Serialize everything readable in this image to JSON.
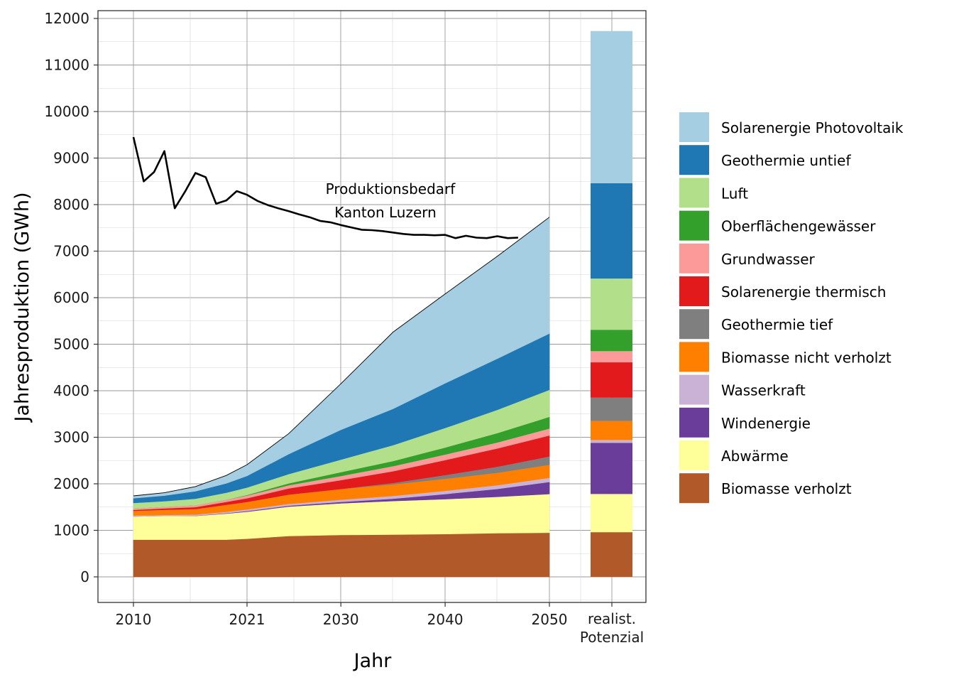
{
  "chart_data": {
    "type": "area",
    "xlabel": "Jahr",
    "ylabel": "Jahresproduktion (GWh)",
    "ylim": [
      -550,
      12200
    ],
    "yticks": [
      0,
      1000,
      2000,
      3000,
      4000,
      5000,
      6000,
      7000,
      8000,
      9000,
      10000,
      11000,
      12000
    ],
    "ytick_labels": [
      "0",
      "1000",
      "2000",
      "3000",
      "4000",
      "5000",
      "6000",
      "7000",
      "8000",
      "9000",
      "10000",
      "11000",
      "12000"
    ],
    "xticks": [
      2010,
      2021,
      2030,
      2040,
      2050
    ],
    "xtick_labels": [
      "2010",
      "2021",
      "2030",
      "2040",
      "2050"
    ],
    "potential_label_line1": "realist.",
    "potential_label_line2": "Potenzial",
    "annotation_line1": "Produktionsbedarf",
    "annotation_line2": "Kanton Luzern",
    "legend_position": "right",
    "grid": true,
    "x": [
      2010,
      2013,
      2016,
      2019,
      2021,
      2025,
      2030,
      2035,
      2040,
      2045,
      2050
    ],
    "series": [
      {
        "name": "Biomasse verholzt",
        "color": "#b15928",
        "values": [
          800,
          800,
          800,
          800,
          820,
          880,
          900,
          910,
          920,
          940,
          950
        ]
      },
      {
        "name": "Abwärme",
        "color": "#ffff99",
        "values": [
          500,
          510,
          510,
          560,
          580,
          630,
          680,
          720,
          750,
          780,
          830
        ]
      },
      {
        "name": "Windenergie",
        "color": "#6a3d9a",
        "values": [
          0,
          0,
          5,
          10,
          15,
          20,
          30,
          50,
          110,
          170,
          260
        ]
      },
      {
        "name": "Wasserkraft",
        "color": "#cab2d6",
        "values": [
          20,
          22,
          25,
          30,
          35,
          40,
          50,
          60,
          70,
          80,
          90
        ]
      },
      {
        "name": "Biomasse nicht verholzt",
        "color": "#ff7f00",
        "values": [
          100,
          110,
          120,
          150,
          160,
          200,
          230,
          250,
          260,
          270,
          280
        ]
      },
      {
        "name": "Geothermie tief",
        "color": "#7f7f7f",
        "values": [
          0,
          0,
          0,
          0,
          0,
          0,
          0,
          30,
          80,
          130,
          180
        ]
      },
      {
        "name": "Solarenergie thermisch",
        "color": "#e31a1c",
        "values": [
          20,
          30,
          40,
          60,
          80,
          130,
          190,
          250,
          320,
          390,
          450
        ]
      },
      {
        "name": "Grundwasser",
        "color": "#fb9a99",
        "values": [
          30,
          35,
          40,
          50,
          60,
          70,
          90,
          110,
          120,
          130,
          150
        ]
      },
      {
        "name": "Oberflächengewässer",
        "color": "#33a02c",
        "values": [
          0,
          0,
          0,
          0,
          10,
          40,
          80,
          110,
          150,
          200,
          250
        ]
      },
      {
        "name": "Luft",
        "color": "#b2df8a",
        "values": [
          120,
          120,
          140,
          150,
          160,
          200,
          270,
          340,
          420,
          500,
          580
        ]
      },
      {
        "name": "Geothermie untief",
        "color": "#1f78b4",
        "values": [
          100,
          120,
          160,
          200,
          250,
          430,
          640,
          780,
          960,
          1100,
          1210
        ]
      },
      {
        "name": "Solarenergie Photovoltaik",
        "color": "#a6cee3",
        "values": [
          50,
          60,
          100,
          170,
          240,
          440,
          990,
          1650,
          1920,
          2200,
          2500
        ]
      }
    ],
    "potential": [
      {
        "name": "Biomasse verholzt",
        "value": 960
      },
      {
        "name": "Abwärme",
        "value": 820
      },
      {
        "name": "Windenergie",
        "value": 1100
      },
      {
        "name": "Wasserkraft",
        "value": 60
      },
      {
        "name": "Biomasse nicht verholzt",
        "value": 410
      },
      {
        "name": "Geothermie tief",
        "value": 500
      },
      {
        "name": "Solarenergie thermisch",
        "value": 760
      },
      {
        "name": "Grundwasser",
        "value": 240
      },
      {
        "name": "Oberflächengewässer",
        "value": 460
      },
      {
        "name": "Luft",
        "value": 1100
      },
      {
        "name": "Geothermie untief",
        "value": 2050
      },
      {
        "name": "Solarenergie Photovoltaik",
        "value": 3270
      }
    ],
    "demand": {
      "name": "Produktionsbedarf Kanton Luzern",
      "color": "#000000",
      "x": [
        2010,
        2011,
        2012,
        2013,
        2014,
        2015,
        2016,
        2017,
        2018,
        2019,
        2020,
        2021,
        2022,
        2023,
        2024,
        2025,
        2026,
        2027,
        2028,
        2029,
        2030,
        2031,
        2032,
        2033,
        2034,
        2035,
        2036,
        2037,
        2038,
        2039,
        2040,
        2041,
        2042,
        2043,
        2044,
        2045,
        2046,
        2047
      ],
      "values": [
        9450,
        8500,
        8700,
        9150,
        7920,
        8280,
        8680,
        8590,
        8020,
        8090,
        8290,
        8210,
        8080,
        7990,
        7920,
        7860,
        7790,
        7730,
        7650,
        7620,
        7560,
        7510,
        7460,
        7450,
        7430,
        7400,
        7370,
        7350,
        7350,
        7340,
        7350,
        7280,
        7330,
        7290,
        7280,
        7320,
        7280,
        7290
      ]
    }
  }
}
